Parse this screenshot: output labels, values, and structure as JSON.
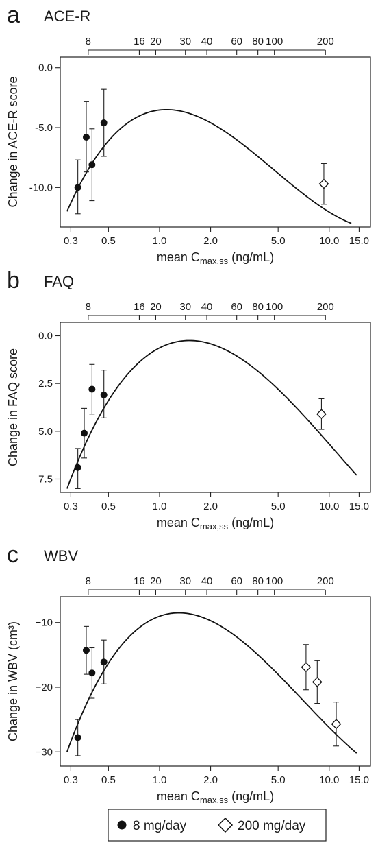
{
  "chart_data": [
    {
      "type": "scatter",
      "panel_letter": "a",
      "title": "ACE-R",
      "xlabel": "mean C",
      "xlabel_subscript": "max,ss",
      "xlabel_unit": " (ng/mL)",
      "ylabel": "Change in ACE-R score",
      "x_scale": "log",
      "xlim": [
        0.26,
        17.5
      ],
      "ylim": [
        -13.3,
        0.9
      ],
      "y_inverted": false,
      "x_ticks": [
        0.3,
        0.5,
        1.0,
        2.0,
        5.0,
        10.0,
        15.0
      ],
      "x_tick_labels": [
        "0.3",
        "0.5",
        "1.0",
        "2.0",
        "5.0",
        "10.0",
        "15.0"
      ],
      "y_ticks": [
        0,
        -5,
        -10
      ],
      "y_tick_labels": [
        "0.0",
        "-5.0",
        "-10.0"
      ],
      "top_axis_dose_labels": [
        "8",
        "16",
        "20",
        "30",
        "40",
        "60",
        "80",
        "100",
        "200"
      ],
      "top_axis_label_x": [
        0.38,
        0.76,
        0.95,
        1.42,
        1.9,
        2.85,
        3.8,
        4.75,
        9.5
      ],
      "series": [
        {
          "name": "8 mg/day",
          "marker": "filled-circle",
          "points": [
            {
              "x": 0.33,
              "y": -10.0,
              "err_low": -12.2,
              "err_high": -7.7
            },
            {
              "x": 0.37,
              "y": -5.8,
              "err_low": -8.7,
              "err_high": -2.8
            },
            {
              "x": 0.4,
              "y": -8.1,
              "err_low": -11.1,
              "err_high": -5.1
            },
            {
              "x": 0.47,
              "y": -4.6,
              "err_low": -7.4,
              "err_high": -1.8
            }
          ]
        },
        {
          "name": "200 mg/day",
          "marker": "open-diamond",
          "points": [
            {
              "x": 9.3,
              "y": -9.7,
              "err_low": -11.4,
              "err_high": -8.0
            }
          ]
        }
      ],
      "fit_curve": {
        "x_range": [
          0.285,
          13.5
        ],
        "peak_x": 1.1,
        "peak_y": -3.5,
        "y_at_ends": [
          -12.0,
          -13.0
        ]
      }
    },
    {
      "type": "scatter",
      "panel_letter": "b",
      "title": "FAQ",
      "xlabel": "mean C",
      "xlabel_subscript": "max,ss",
      "xlabel_unit": " (ng/mL)",
      "ylabel": "Change in FAQ score",
      "x_scale": "log",
      "xlim": [
        0.26,
        17.5
      ],
      "ylim": [
        -0.7,
        8.2
      ],
      "y_inverted": true,
      "x_ticks": [
        0.3,
        0.5,
        1.0,
        2.0,
        5.0,
        10.0,
        15.0
      ],
      "x_tick_labels": [
        "0.3",
        "0.5",
        "1.0",
        "2.0",
        "5.0",
        "10.0",
        "15.0"
      ],
      "y_ticks": [
        0,
        2.5,
        5,
        7.5
      ],
      "y_tick_labels": [
        "0.0",
        "2.5",
        "5.0",
        "7.5"
      ],
      "top_axis_dose_labels": [
        "8",
        "16",
        "20",
        "30",
        "40",
        "60",
        "80",
        "100",
        "200"
      ],
      "top_axis_label_x": [
        0.38,
        0.76,
        0.95,
        1.42,
        1.9,
        2.85,
        3.8,
        4.75,
        9.5
      ],
      "series": [
        {
          "name": "8 mg/day",
          "marker": "filled-circle",
          "points": [
            {
              "x": 0.33,
              "y": 6.9,
              "err_low": 8.0,
              "err_high": 5.9
            },
            {
              "x": 0.36,
              "y": 5.1,
              "err_low": 6.4,
              "err_high": 3.8
            },
            {
              "x": 0.4,
              "y": 2.8,
              "err_low": 4.1,
              "err_high": 1.5
            },
            {
              "x": 0.47,
              "y": 3.1,
              "err_low": 4.3,
              "err_high": 1.8
            }
          ]
        },
        {
          "name": "200 mg/day",
          "marker": "open-diamond",
          "points": [
            {
              "x": 9.0,
              "y": 4.1,
              "err_low": 4.9,
              "err_high": 3.3
            }
          ]
        }
      ],
      "fit_curve": {
        "x_range": [
          0.285,
          14.5
        ],
        "peak_x": 1.5,
        "peak_y": 0.25,
        "y_at_ends": [
          8.0,
          7.3
        ]
      }
    },
    {
      "type": "scatter",
      "panel_letter": "c",
      "title": "WBV",
      "xlabel": "mean C",
      "xlabel_subscript": "max,ss",
      "xlabel_unit": " (ng/mL)",
      "ylabel": "Change in WBV (cm³)",
      "x_scale": "log",
      "xlim": [
        0.26,
        17.5
      ],
      "ylim": [
        -32.2,
        -6.0
      ],
      "y_inverted": false,
      "x_ticks": [
        0.3,
        0.5,
        1.0,
        2.0,
        5.0,
        10.0,
        15.0
      ],
      "x_tick_labels": [
        "0.3",
        "0.5",
        "1.0",
        "2.0",
        "5.0",
        "10.0",
        "15.0"
      ],
      "y_ticks": [
        -10,
        -20,
        -30
      ],
      "y_tick_labels": [
        "−10",
        "−20",
        "−30"
      ],
      "top_axis_dose_labels": [
        "8",
        "16",
        "20",
        "30",
        "40",
        "60",
        "80",
        "100",
        "200"
      ],
      "top_axis_label_x": [
        0.38,
        0.76,
        0.95,
        1.42,
        1.9,
        2.85,
        3.8,
        4.75,
        9.5
      ],
      "series": [
        {
          "name": "8 mg/day",
          "marker": "filled-circle",
          "points": [
            {
              "x": 0.33,
              "y": -27.8,
              "err_low": -30.6,
              "err_high": -25.0
            },
            {
              "x": 0.37,
              "y": -14.3,
              "err_low": -18.0,
              "err_high": -10.6
            },
            {
              "x": 0.4,
              "y": -17.8,
              "err_low": -21.7,
              "err_high": -13.9
            },
            {
              "x": 0.47,
              "y": -16.1,
              "err_low": -19.5,
              "err_high": -12.7
            }
          ]
        },
        {
          "name": "200 mg/day",
          "marker": "open-diamond",
          "points": [
            {
              "x": 7.3,
              "y": -16.9,
              "err_low": -20.4,
              "err_high": -13.4
            },
            {
              "x": 8.5,
              "y": -19.2,
              "err_low": -22.5,
              "err_high": -15.9
            },
            {
              "x": 11.0,
              "y": -25.7,
              "err_low": -29.1,
              "err_high": -22.3
            }
          ]
        }
      ],
      "fit_curve": {
        "x_range": [
          0.285,
          14.5
        ],
        "peak_x": 1.3,
        "peak_y": -8.5,
        "y_at_ends": [
          -30.0,
          -30.2
        ]
      }
    }
  ],
  "legend": {
    "items": [
      {
        "label": "8 mg/day",
        "marker": "filled-circle"
      },
      {
        "label": "200 mg/day",
        "marker": "open-diamond"
      }
    ]
  }
}
